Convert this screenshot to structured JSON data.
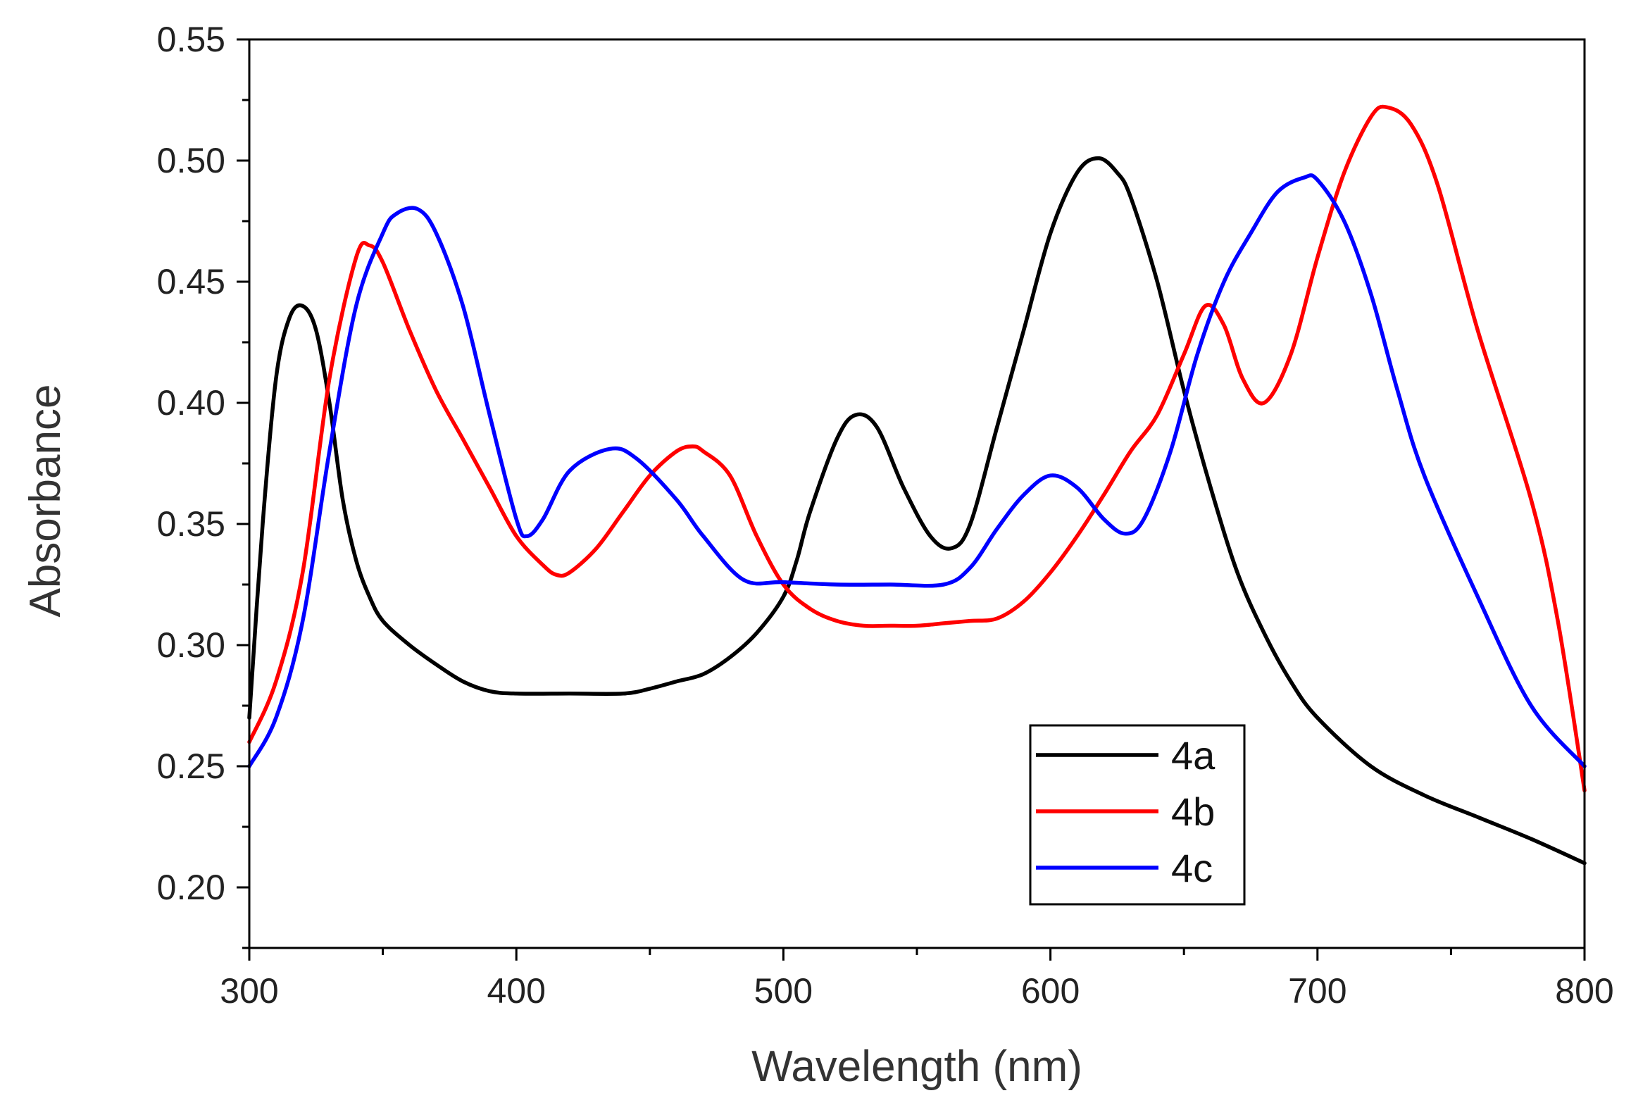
{
  "chart_data": {
    "type": "line",
    "title": "",
    "xlabel": "Wavelength (nm)",
    "ylabel": "Absorbance",
    "xlim": [
      300,
      800
    ],
    "ylim": [
      0.175,
      0.55
    ],
    "xticks": [
      300,
      400,
      500,
      600,
      700,
      800
    ],
    "xtick_labels": [
      "300",
      "400",
      "500",
      "600",
      "700",
      "800"
    ],
    "yticks": [
      0.2,
      0.25,
      0.3,
      0.35,
      0.4,
      0.45,
      0.5,
      0.55
    ],
    "ytick_labels": [
      "0.20",
      "0.25",
      "0.30",
      "0.35",
      "0.40",
      "0.45",
      "0.50",
      "0.55"
    ],
    "grid": false,
    "legend_position": "bottom-right",
    "series": [
      {
        "name": "4a",
        "color": "#000000",
        "x": [
          300,
          305,
          310,
          315,
          320,
          325,
          330,
          335,
          340,
          345,
          350,
          360,
          370,
          380,
          390,
          400,
          420,
          440,
          450,
          460,
          470,
          480,
          490,
          500,
          505,
          510,
          520,
          527,
          535,
          545,
          555,
          563,
          570,
          580,
          590,
          600,
          610,
          618,
          625,
          630,
          640,
          650,
          660,
          670,
          680,
          690,
          700,
          720,
          740,
          760,
          780,
          800
        ],
        "y": [
          0.27,
          0.35,
          0.41,
          0.435,
          0.44,
          0.43,
          0.4,
          0.36,
          0.335,
          0.32,
          0.31,
          0.3,
          0.292,
          0.285,
          0.281,
          0.28,
          0.28,
          0.28,
          0.282,
          0.285,
          0.288,
          0.295,
          0.305,
          0.32,
          0.335,
          0.355,
          0.385,
          0.395,
          0.39,
          0.365,
          0.345,
          0.34,
          0.35,
          0.39,
          0.43,
          0.47,
          0.495,
          0.501,
          0.495,
          0.485,
          0.45,
          0.405,
          0.365,
          0.33,
          0.305,
          0.285,
          0.27,
          0.25,
          0.238,
          0.229,
          0.22,
          0.21
        ]
      },
      {
        "name": "4b",
        "color": "#ff0000",
        "x": [
          300,
          310,
          320,
          330,
          340,
          345,
          350,
          360,
          370,
          380,
          390,
          400,
          410,
          415,
          420,
          430,
          440,
          450,
          460,
          466,
          470,
          480,
          490,
          500,
          510,
          520,
          530,
          540,
          550,
          560,
          570,
          580,
          590,
          600,
          610,
          620,
          630,
          640,
          650,
          658,
          665,
          672,
          680,
          690,
          700,
          710,
          720,
          726,
          735,
          745,
          760,
          780,
          790,
          800
        ],
        "y": [
          0.26,
          0.285,
          0.33,
          0.41,
          0.46,
          0.465,
          0.458,
          0.43,
          0.405,
          0.385,
          0.365,
          0.345,
          0.333,
          0.329,
          0.33,
          0.34,
          0.355,
          0.37,
          0.38,
          0.382,
          0.38,
          0.37,
          0.345,
          0.325,
          0.315,
          0.31,
          0.308,
          0.308,
          0.308,
          0.309,
          0.31,
          0.311,
          0.318,
          0.33,
          0.345,
          0.362,
          0.38,
          0.395,
          0.42,
          0.44,
          0.432,
          0.41,
          0.4,
          0.42,
          0.46,
          0.495,
          0.518,
          0.522,
          0.515,
          0.49,
          0.43,
          0.36,
          0.31,
          0.24
        ]
      },
      {
        "name": "4c",
        "color": "#0000ff",
        "x": [
          300,
          310,
          320,
          330,
          340,
          350,
          355,
          363,
          370,
          380,
          390,
          400,
          404,
          410,
          420,
          435,
          445,
          460,
          470,
          485,
          500,
          520,
          540,
          560,
          570,
          580,
          590,
          600,
          610,
          620,
          628,
          635,
          645,
          655,
          665,
          675,
          685,
          695,
          700,
          710,
          720,
          730,
          740,
          760,
          780,
          800
        ],
        "y": [
          0.25,
          0.27,
          0.31,
          0.38,
          0.44,
          0.47,
          0.478,
          0.48,
          0.47,
          0.44,
          0.395,
          0.352,
          0.345,
          0.352,
          0.372,
          0.381,
          0.377,
          0.36,
          0.345,
          0.327,
          0.326,
          0.325,
          0.325,
          0.325,
          0.332,
          0.348,
          0.362,
          0.37,
          0.365,
          0.352,
          0.346,
          0.352,
          0.38,
          0.42,
          0.45,
          0.47,
          0.487,
          0.493,
          0.492,
          0.475,
          0.445,
          0.405,
          0.37,
          0.32,
          0.275,
          0.25
        ]
      }
    ]
  }
}
